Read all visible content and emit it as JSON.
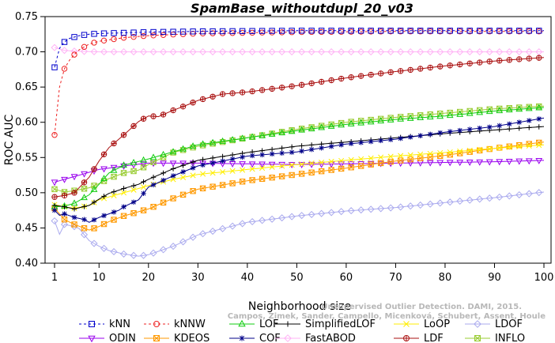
{
  "chart_data": {
    "type": "line",
    "title": "SpamBase_withoutdupl_20_v03",
    "xlabel": "Neighborhood size",
    "ylabel": "ROC AUC",
    "xlim": [
      1,
      100
    ],
    "ylim": [
      0.4,
      0.75
    ],
    "xticks": [
      "1",
      "10",
      "20",
      "30",
      "40",
      "50",
      "60",
      "70",
      "80",
      "90",
      "100"
    ],
    "yticks": [
      "0.40",
      "0.45",
      "0.50",
      "0.55",
      "0.60",
      "0.65",
      "0.70",
      "0.75"
    ],
    "grid": false,
    "legend_position": "bottom",
    "credit": [
      "Unsupervised Outlier Detection. DAMI, 2015.",
      "Campos, Zimek, Sander, Campello, Micenková, Schubert, Assent, Houle"
    ],
    "series": [
      {
        "name": "kNN",
        "color": "#0000cc",
        "marker": "square",
        "dashed": true,
        "points": [
          [
            1,
            0.678
          ],
          [
            2,
            0.705
          ],
          [
            3,
            0.714
          ],
          [
            4,
            0.719
          ],
          [
            5,
            0.721
          ],
          [
            6,
            0.723
          ],
          [
            8,
            0.725
          ],
          [
            10,
            0.726
          ],
          [
            15,
            0.727
          ],
          [
            20,
            0.728
          ],
          [
            30,
            0.729
          ],
          [
            50,
            0.73
          ],
          [
            70,
            0.73
          ],
          [
            100,
            0.73
          ]
        ]
      },
      {
        "name": "kNNW",
        "color": "#ee2222",
        "marker": "circle",
        "dashed": true,
        "points": [
          [
            1,
            0.582
          ],
          [
            2,
            0.65
          ],
          [
            3,
            0.676
          ],
          [
            4,
            0.688
          ],
          [
            5,
            0.696
          ],
          [
            6,
            0.703
          ],
          [
            8,
            0.711
          ],
          [
            10,
            0.715
          ],
          [
            15,
            0.72
          ],
          [
            20,
            0.723
          ],
          [
            30,
            0.726
          ],
          [
            50,
            0.728
          ],
          [
            70,
            0.729
          ],
          [
            100,
            0.729
          ]
        ]
      },
      {
        "name": "LOF",
        "color": "#11cc11",
        "marker": "triangle-up",
        "dashed": false,
        "points": [
          [
            1,
            0.48
          ],
          [
            3,
            0.481
          ],
          [
            5,
            0.485
          ],
          [
            8,
            0.497
          ],
          [
            10,
            0.512
          ],
          [
            12,
            0.528
          ],
          [
            15,
            0.539
          ],
          [
            20,
            0.548
          ],
          [
            25,
            0.558
          ],
          [
            30,
            0.568
          ],
          [
            40,
            0.578
          ],
          [
            50,
            0.588
          ],
          [
            60,
            0.597
          ],
          [
            70,
            0.604
          ],
          [
            80,
            0.609
          ],
          [
            90,
            0.616
          ],
          [
            100,
            0.621
          ]
        ]
      },
      {
        "name": "SimplifiedLOF",
        "color": "#000000",
        "marker": "plus",
        "dashed": false,
        "points": [
          [
            1,
            0.482
          ],
          [
            3,
            0.48
          ],
          [
            5,
            0.477
          ],
          [
            8,
            0.482
          ],
          [
            10,
            0.491
          ],
          [
            12,
            0.499
          ],
          [
            15,
            0.506
          ],
          [
            18,
            0.512
          ],
          [
            20,
            0.519
          ],
          [
            25,
            0.534
          ],
          [
            30,
            0.546
          ],
          [
            40,
            0.557
          ],
          [
            50,
            0.566
          ],
          [
            60,
            0.572
          ],
          [
            70,
            0.578
          ],
          [
            80,
            0.584
          ],
          [
            90,
            0.589
          ],
          [
            100,
            0.594
          ]
        ]
      },
      {
        "name": "LoOP",
        "color": "#ffee00",
        "marker": "x",
        "dashed": false,
        "points": [
          [
            1,
            0.483
          ],
          [
            3,
            0.48
          ],
          [
            5,
            0.478
          ],
          [
            8,
            0.482
          ],
          [
            10,
            0.49
          ],
          [
            15,
            0.5
          ],
          [
            20,
            0.51
          ],
          [
            25,
            0.519
          ],
          [
            30,
            0.526
          ],
          [
            40,
            0.533
          ],
          [
            50,
            0.54
          ],
          [
            60,
            0.546
          ],
          [
            70,
            0.552
          ],
          [
            80,
            0.557
          ],
          [
            90,
            0.563
          ],
          [
            100,
            0.568
          ]
        ]
      },
      {
        "name": "LDOF",
        "color": "#aaaaee",
        "marker": "diamond",
        "dashed": false,
        "points": [
          [
            1,
            0.46
          ],
          [
            2,
            0.441
          ],
          [
            3,
            0.455
          ],
          [
            5,
            0.452
          ],
          [
            6,
            0.449
          ],
          [
            8,
            0.432
          ],
          [
            10,
            0.424
          ],
          [
            12,
            0.418
          ],
          [
            15,
            0.413
          ],
          [
            18,
            0.41
          ],
          [
            20,
            0.412
          ],
          [
            25,
            0.424
          ],
          [
            30,
            0.44
          ],
          [
            40,
            0.458
          ],
          [
            50,
            0.467
          ],
          [
            60,
            0.474
          ],
          [
            70,
            0.479
          ],
          [
            80,
            0.486
          ],
          [
            90,
            0.493
          ],
          [
            100,
            0.501
          ]
        ]
      },
      {
        "name": "ODIN",
        "color": "#9900ee",
        "marker": "triangle-down",
        "dashed": false,
        "points": [
          [
            1,
            0.515
          ],
          [
            3,
            0.519
          ],
          [
            5,
            0.523
          ],
          [
            8,
            0.529
          ],
          [
            10,
            0.533
          ],
          [
            15,
            0.538
          ],
          [
            20,
            0.542
          ],
          [
            30,
            0.542
          ],
          [
            40,
            0.541
          ],
          [
            50,
            0.54
          ],
          [
            60,
            0.541
          ],
          [
            70,
            0.542
          ],
          [
            80,
            0.543
          ],
          [
            90,
            0.544
          ],
          [
            100,
            0.546
          ]
        ]
      },
      {
        "name": "KDEOS",
        "color": "#ff9900",
        "marker": "square-x",
        "dashed": false,
        "points": [
          [
            1,
            0.478
          ],
          [
            3,
            0.462
          ],
          [
            5,
            0.455
          ],
          [
            8,
            0.447
          ],
          [
            10,
            0.452
          ],
          [
            12,
            0.459
          ],
          [
            15,
            0.467
          ],
          [
            20,
            0.477
          ],
          [
            25,
            0.492
          ],
          [
            30,
            0.505
          ],
          [
            40,
            0.517
          ],
          [
            50,
            0.526
          ],
          [
            60,
            0.535
          ],
          [
            70,
            0.545
          ],
          [
            80,
            0.553
          ],
          [
            90,
            0.563
          ],
          [
            100,
            0.572
          ]
        ]
      },
      {
        "name": "COF",
        "color": "#000088",
        "marker": "star",
        "dashed": false,
        "points": [
          [
            1,
            0.475
          ],
          [
            2,
            0.468
          ],
          [
            3,
            0.47
          ],
          [
            5,
            0.465
          ],
          [
            7,
            0.462
          ],
          [
            8,
            0.458
          ],
          [
            10,
            0.465
          ],
          [
            12,
            0.47
          ],
          [
            14,
            0.475
          ],
          [
            15,
            0.48
          ],
          [
            18,
            0.49
          ],
          [
            20,
            0.508
          ],
          [
            25,
            0.524
          ],
          [
            30,
            0.538
          ],
          [
            40,
            0.552
          ],
          [
            50,
            0.558
          ],
          [
            60,
            0.569
          ],
          [
            70,
            0.576
          ],
          [
            80,
            0.586
          ],
          [
            90,
            0.594
          ],
          [
            100,
            0.606
          ]
        ]
      },
      {
        "name": "FastABOD",
        "color": "#ffb3f5",
        "marker": "diamond",
        "dashed": false,
        "points": [
          [
            1,
            0.706
          ],
          [
            3,
            0.702
          ],
          [
            5,
            0.701
          ],
          [
            10,
            0.7
          ],
          [
            20,
            0.7
          ],
          [
            40,
            0.7
          ],
          [
            60,
            0.7
          ],
          [
            80,
            0.7
          ],
          [
            100,
            0.7
          ]
        ]
      },
      {
        "name": "LDF",
        "color": "#aa1111",
        "marker": "circle-plus",
        "dashed": false,
        "points": [
          [
            1,
            0.494
          ],
          [
            3,
            0.496
          ],
          [
            5,
            0.5
          ],
          [
            8,
            0.522
          ],
          [
            10,
            0.545
          ],
          [
            12,
            0.564
          ],
          [
            15,
            0.582
          ],
          [
            18,
            0.601
          ],
          [
            20,
            0.609
          ],
          [
            22,
            0.608
          ],
          [
            25,
            0.617
          ],
          [
            28,
            0.625
          ],
          [
            30,
            0.631
          ],
          [
            35,
            0.64
          ],
          [
            40,
            0.643
          ],
          [
            50,
            0.652
          ],
          [
            60,
            0.663
          ],
          [
            70,
            0.672
          ],
          [
            80,
            0.68
          ],
          [
            90,
            0.687
          ],
          [
            100,
            0.692
          ]
        ]
      },
      {
        "name": "INFLO",
        "color": "#99cc33",
        "marker": "square-x",
        "dashed": false,
        "points": [
          [
            1,
            0.505
          ],
          [
            3,
            0.501
          ],
          [
            5,
            0.503
          ],
          [
            8,
            0.507
          ],
          [
            10,
            0.513
          ],
          [
            12,
            0.52
          ],
          [
            15,
            0.528
          ],
          [
            18,
            0.532
          ],
          [
            20,
            0.54
          ],
          [
            25,
            0.557
          ],
          [
            30,
            0.566
          ],
          [
            40,
            0.578
          ],
          [
            50,
            0.59
          ],
          [
            60,
            0.6
          ],
          [
            70,
            0.607
          ],
          [
            80,
            0.613
          ],
          [
            90,
            0.619
          ],
          [
            100,
            0.623
          ]
        ]
      }
    ]
  }
}
